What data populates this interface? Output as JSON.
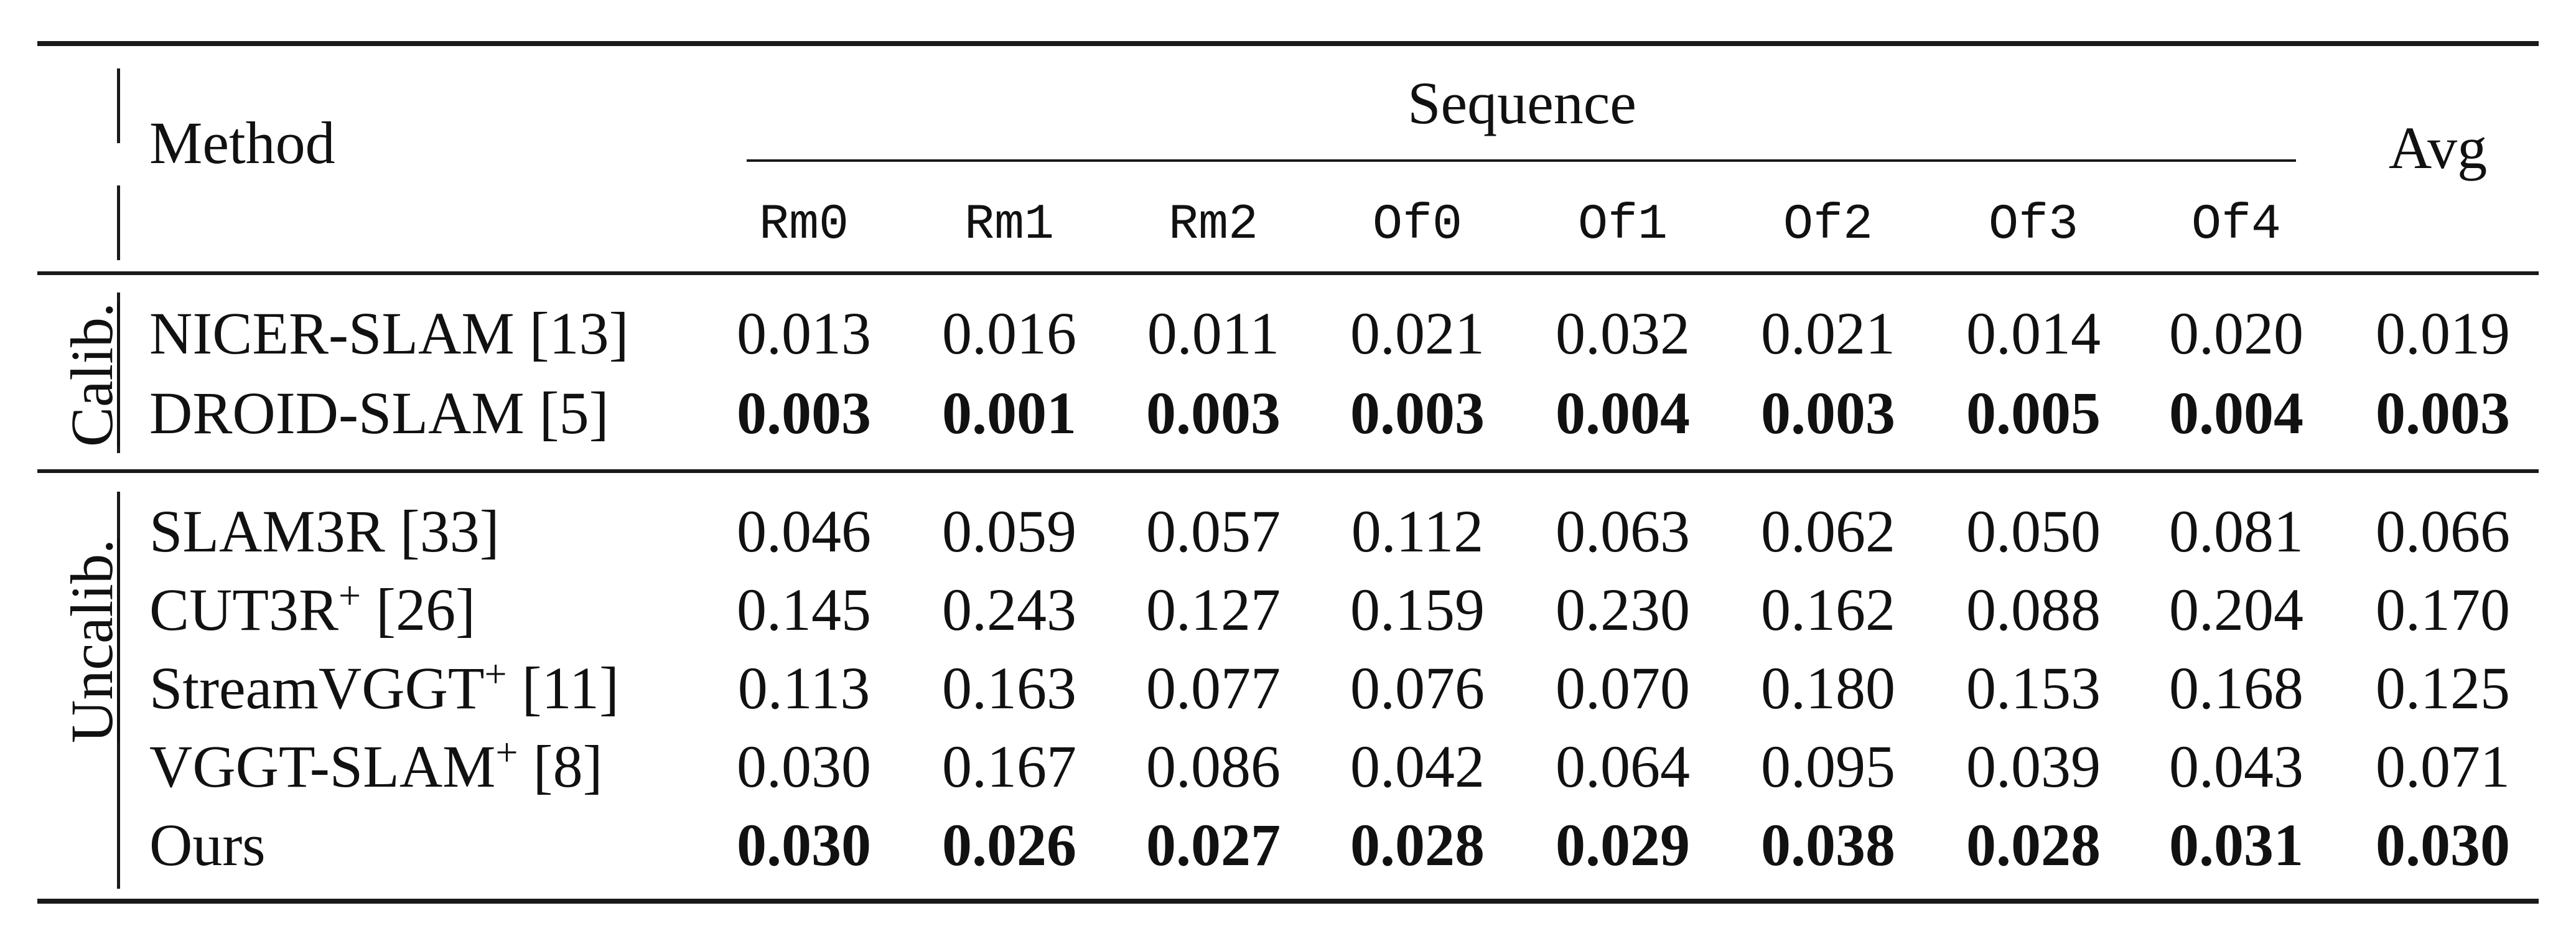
{
  "header": {
    "method": "Method",
    "sequence": "Sequence",
    "avg": "Avg",
    "columns": [
      "Rm0",
      "Rm1",
      "Rm2",
      "Of0",
      "Of1",
      "Of2",
      "Of3",
      "Of4"
    ]
  },
  "groups": {
    "calib": "Calib.",
    "uncalib": "Uncalib."
  },
  "rows": [
    {
      "method": "NICER-SLAM [13]",
      "values": [
        "0.013",
        "0.016",
        "0.011",
        "0.021",
        "0.032",
        "0.021",
        "0.014",
        "0.020"
      ],
      "avg": "0.019",
      "bold": false
    },
    {
      "method": "DROID-SLAM [5]",
      "values": [
        "0.003",
        "0.001",
        "0.003",
        "0.003",
        "0.004",
        "0.003",
        "0.005",
        "0.004"
      ],
      "avg": "0.003",
      "bold": true
    },
    {
      "method": "SLAM3R [33]",
      "values": [
        "0.046",
        "0.059",
        "0.057",
        "0.112",
        "0.063",
        "0.062",
        "0.050",
        "0.081"
      ],
      "avg": "0.066",
      "bold": false
    },
    {
      "method_base": "CUT3R",
      "method_sup": "+",
      "method_ref": "[26]",
      "values": [
        "0.145",
        "0.243",
        "0.127",
        "0.159",
        "0.230",
        "0.162",
        "0.088",
        "0.204"
      ],
      "avg": "0.170",
      "bold": false
    },
    {
      "method_base": "StreamVGGT",
      "method_sup": "+",
      "method_ref": "[11]",
      "values": [
        "0.113",
        "0.163",
        "0.077",
        "0.076",
        "0.070",
        "0.180",
        "0.153",
        "0.168"
      ],
      "avg": "0.125",
      "bold": false
    },
    {
      "method_base": "VGGT-SLAM",
      "method_sup": "+",
      "method_ref": "[8]",
      "values": [
        "0.030",
        "0.167",
        "0.086",
        "0.042",
        "0.064",
        "0.095",
        "0.039",
        "0.043"
      ],
      "avg": "0.071",
      "bold": false
    },
    {
      "method": "Ours",
      "values": [
        "0.030",
        "0.026",
        "0.027",
        "0.028",
        "0.029",
        "0.038",
        "0.028",
        "0.031"
      ],
      "avg": "0.030",
      "bold": true
    }
  ]
}
